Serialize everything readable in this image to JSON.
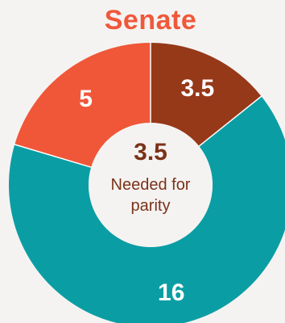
{
  "chart_data": {
    "type": "donut",
    "title": "Senate",
    "values": [
      3.5,
      16,
      5
    ],
    "labels": [
      "3.5",
      "16",
      "5"
    ],
    "colors": [
      "#963919",
      "#0a9ea4",
      "#ef5738"
    ],
    "center": {
      "value": "3.5",
      "label": "Needed for parity"
    }
  }
}
